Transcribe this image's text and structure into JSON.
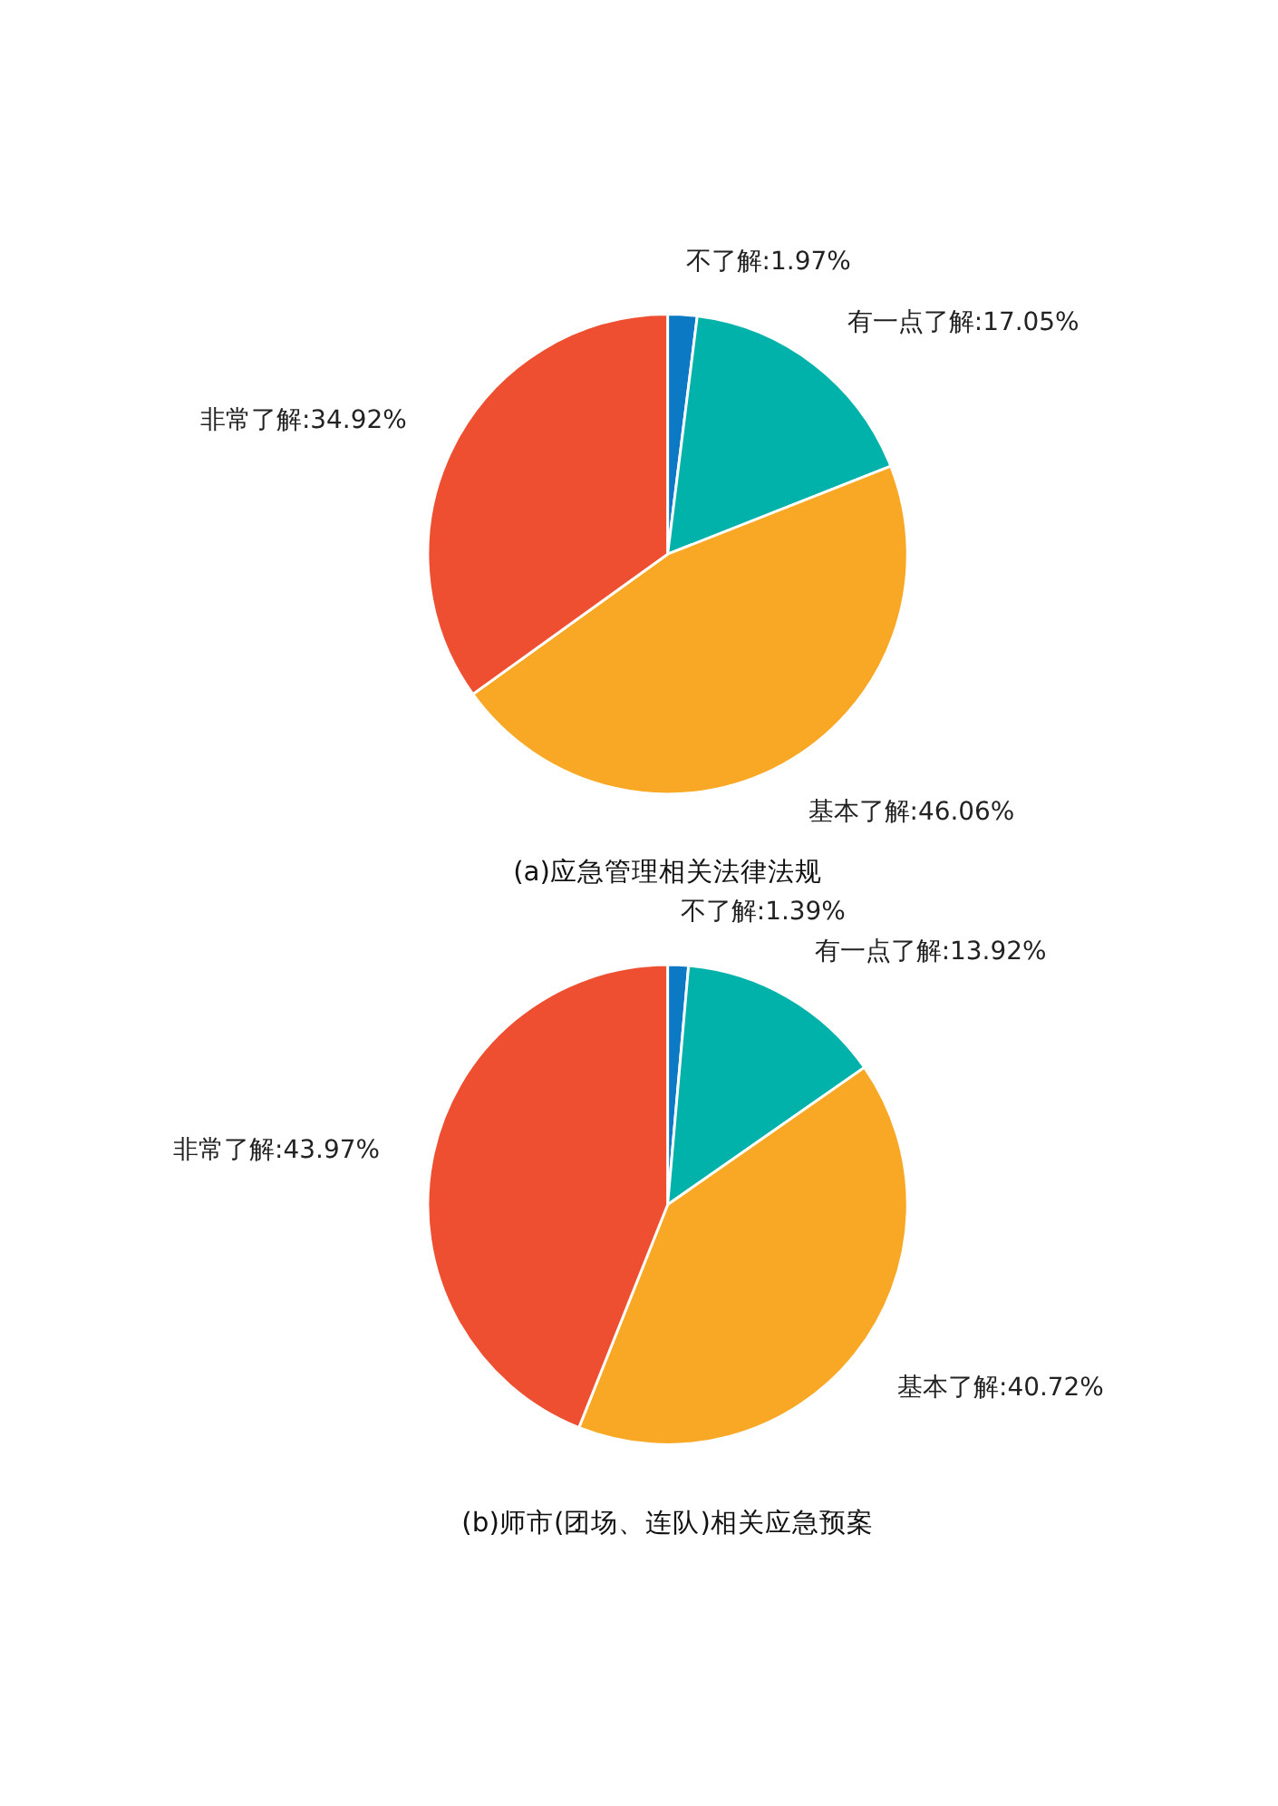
{
  "chart_data": [
    {
      "type": "pie",
      "title": "(a)应急管理相关法律法规",
      "categories": [
        "不了解",
        "有一点了解",
        "基本了解",
        "非常了解"
      ],
      "values": [
        1.97,
        17.05,
        46.06,
        34.92
      ],
      "colors": [
        "#0b79c4",
        "#00b2aa",
        "#f9a825",
        "#ee4f30"
      ],
      "value_labels": [
        "1.97%",
        "17.05%",
        "46.06%",
        "34.92%"
      ],
      "legend": false
    },
    {
      "type": "pie",
      "title": "(b)师市(团场、连队)相关应急预案",
      "categories": [
        "不了解",
        "有一点了解",
        "基本了解",
        "非常了解"
      ],
      "values": [
        1.39,
        13.92,
        40.72,
        43.97
      ],
      "colors": [
        "#0b79c4",
        "#00b7b7",
        "#fbb72f",
        "#f15e3c"
      ],
      "value_labels": [
        "1.39%",
        "13.92%",
        "40.72%",
        "43.97%"
      ],
      "legend": false
    }
  ]
}
